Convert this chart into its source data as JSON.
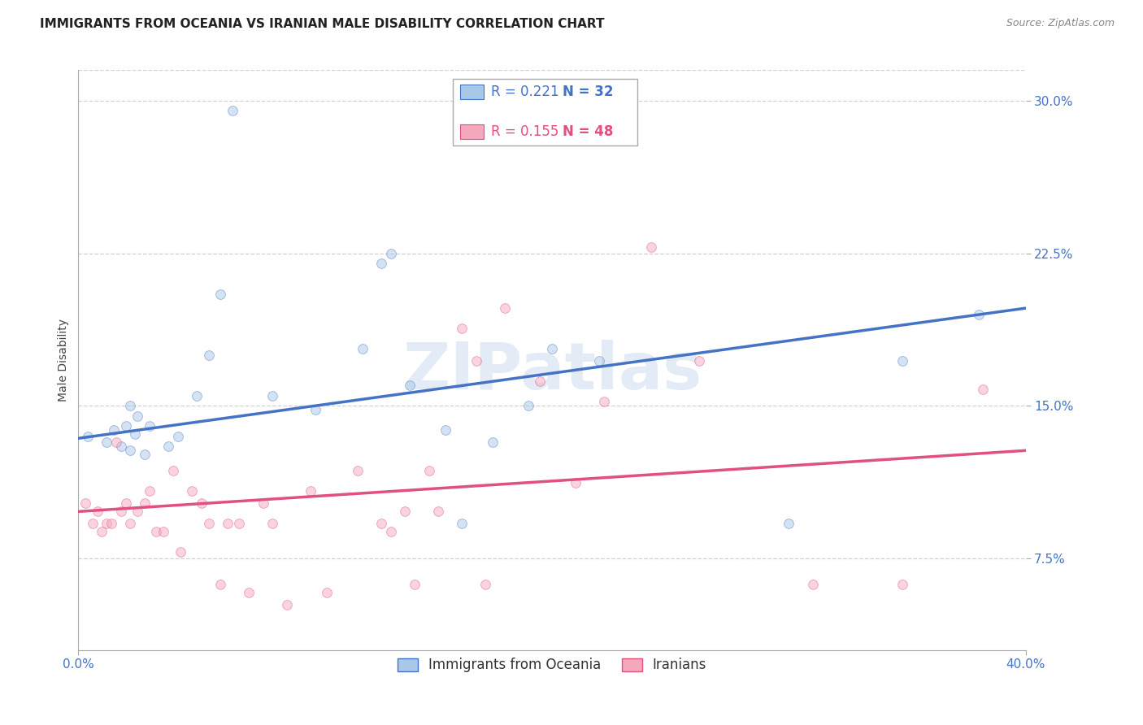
{
  "title": "IMMIGRANTS FROM OCEANIA VS IRANIAN MALE DISABILITY CORRELATION CHART",
  "source": "Source: ZipAtlas.com",
  "ylabel": "Male Disability",
  "watermark": "ZIPatlas",
  "xlim": [
    0.0,
    0.4
  ],
  "ylim": [
    0.03,
    0.315
  ],
  "xticks": [
    0.0,
    0.4
  ],
  "yticks": [
    0.075,
    0.15,
    0.225,
    0.3
  ],
  "ytick_labels": [
    "7.5%",
    "15.0%",
    "22.5%",
    "30.0%"
  ],
  "xtick_labels": [
    "0.0%",
    "40.0%"
  ],
  "series1_color": "#a8c8e8",
  "series2_color": "#f4a8bc",
  "line1_color": "#4472c4",
  "line2_color": "#e05080",
  "legend_R1": "R = 0.221",
  "legend_N1": "N = 32",
  "legend_R2": "R = 0.155",
  "legend_N2": "N = 48",
  "axis_color": "#4472c4",
  "grid_color": "#d0d0d0",
  "series1_x": [
    0.004,
    0.012,
    0.015,
    0.018,
    0.02,
    0.022,
    0.022,
    0.024,
    0.025,
    0.028,
    0.03,
    0.038,
    0.042,
    0.05,
    0.055,
    0.06,
    0.065,
    0.082,
    0.1,
    0.12,
    0.128,
    0.132,
    0.14,
    0.155,
    0.162,
    0.175,
    0.19,
    0.2,
    0.22,
    0.3,
    0.348,
    0.38
  ],
  "series1_y": [
    0.135,
    0.132,
    0.138,
    0.13,
    0.14,
    0.15,
    0.128,
    0.136,
    0.145,
    0.126,
    0.14,
    0.13,
    0.135,
    0.155,
    0.175,
    0.205,
    0.295,
    0.155,
    0.148,
    0.178,
    0.22,
    0.225,
    0.16,
    0.138,
    0.092,
    0.132,
    0.15,
    0.178,
    0.172,
    0.092,
    0.172,
    0.195
  ],
  "series2_x": [
    0.003,
    0.006,
    0.008,
    0.01,
    0.012,
    0.014,
    0.016,
    0.018,
    0.02,
    0.022,
    0.025,
    0.028,
    0.03,
    0.033,
    0.036,
    0.04,
    0.043,
    0.048,
    0.052,
    0.055,
    0.06,
    0.063,
    0.068,
    0.072,
    0.078,
    0.082,
    0.088,
    0.098,
    0.105,
    0.118,
    0.128,
    0.132,
    0.138,
    0.142,
    0.148,
    0.152,
    0.162,
    0.168,
    0.172,
    0.18,
    0.195,
    0.21,
    0.222,
    0.242,
    0.262,
    0.31,
    0.348,
    0.382
  ],
  "series2_y": [
    0.102,
    0.092,
    0.098,
    0.088,
    0.092,
    0.092,
    0.132,
    0.098,
    0.102,
    0.092,
    0.098,
    0.102,
    0.108,
    0.088,
    0.088,
    0.118,
    0.078,
    0.108,
    0.102,
    0.092,
    0.062,
    0.092,
    0.092,
    0.058,
    0.102,
    0.092,
    0.052,
    0.108,
    0.058,
    0.118,
    0.092,
    0.088,
    0.098,
    0.062,
    0.118,
    0.098,
    0.188,
    0.172,
    0.062,
    0.198,
    0.162,
    0.112,
    0.152,
    0.228,
    0.172,
    0.062,
    0.062,
    0.158
  ],
  "line1_y_start": 0.134,
  "line1_y_end": 0.198,
  "line2_y_start": 0.098,
  "line2_y_end": 0.128,
  "title_fontsize": 11,
  "axis_label_fontsize": 10,
  "tick_fontsize": 11,
  "legend_fontsize": 12,
  "source_fontsize": 9,
  "marker_size": 72,
  "marker_alpha": 0.5
}
